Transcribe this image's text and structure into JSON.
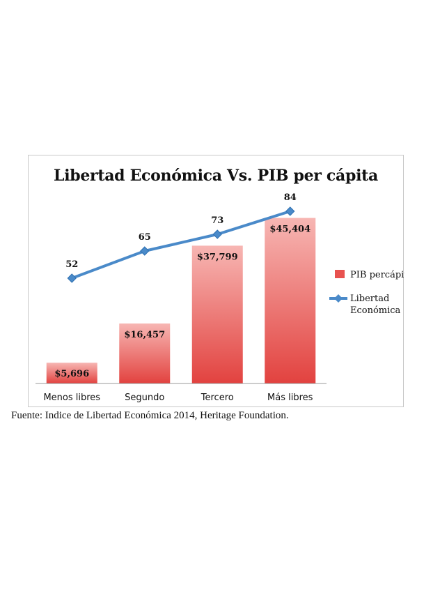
{
  "chart_data": {
    "type": "bar",
    "title": "Libertad Económica Vs. PIB per cápita",
    "categories": [
      "Menos libres",
      "Segundo",
      "Tercero",
      "Más libres"
    ],
    "series": [
      {
        "name": "PIB percápita",
        "type": "bar",
        "values": [
          5696,
          16457,
          37799,
          45404
        ],
        "labels": [
          "$5,696",
          "$16,457",
          "$37,799",
          "$45,404"
        ],
        "color": "#e8524f"
      },
      {
        "name": "Libertad Económica",
        "type": "line",
        "values": [
          52,
          65,
          73,
          84
        ],
        "labels": [
          "52",
          "65",
          "73",
          "84"
        ],
        "color": "#4a8ac9"
      }
    ],
    "legend_position": "right",
    "grid": false
  },
  "source_note": "Fuente: Indice de Libertad Económica 2014, Heritage Foundation."
}
